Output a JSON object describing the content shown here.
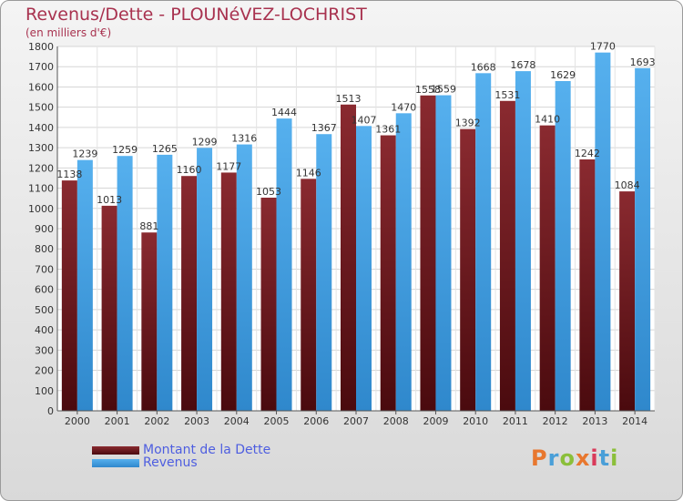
{
  "header": {
    "title": "Revenus/Dette - PLOUNéVEZ-LOCHRIST",
    "subtitle": "(en milliers d'€)"
  },
  "legend": {
    "items": [
      {
        "label": "Montant de la Dette",
        "color": "#7a1c22"
      },
      {
        "label": "Revenus",
        "color": "#3e9ee3"
      }
    ]
  },
  "logo": {
    "text": "Proxiti",
    "colors": [
      "#e8772e",
      "#4a9fd8",
      "#8bbf3a",
      "#e8772e",
      "#d93a5a",
      "#4a9fd8",
      "#8bbf3a"
    ]
  },
  "chart_data": {
    "type": "bar",
    "categories": [
      "2000",
      "2001",
      "2002",
      "2003",
      "2004",
      "2005",
      "2006",
      "2007",
      "2008",
      "2009",
      "2010",
      "2011",
      "2012",
      "2013",
      "2014"
    ],
    "series": [
      {
        "name": "Montant de la Dette",
        "color": "#7a1c22",
        "values": [
          1138,
          1013,
          881,
          1160,
          1177,
          1053,
          1146,
          1513,
          1361,
          1558,
          1392,
          1531,
          1410,
          1242,
          1084
        ]
      },
      {
        "name": "Revenus",
        "color": "#3e9ee3",
        "values": [
          1239,
          1259,
          1265,
          1299,
          1316,
          1444,
          1367,
          1407,
          1470,
          1559,
          1668,
          1678,
          1629,
          1770,
          1693
        ]
      }
    ],
    "value_labels": [
      [
        "1138",
        "1013",
        "881",
        "1160",
        "1177",
        "1053",
        "1146",
        "1513",
        "1361",
        "1558",
        "1392",
        "1531",
        "1410",
        "1242",
        "1084"
      ],
      [
        "1239",
        "1259",
        "1265",
        "1299",
        "1316",
        "1444",
        "1367",
        "1407",
        "1470",
        "1559",
        "1668",
        "1678",
        "1629",
        "1770",
        "1693"
      ]
    ],
    "ylim": [
      0,
      1800
    ],
    "yticks": [
      0,
      100,
      200,
      300,
      400,
      500,
      600,
      700,
      800,
      900,
      1000,
      1100,
      1200,
      1300,
      1400,
      1500,
      1600,
      1700,
      1800
    ],
    "grid": true
  }
}
